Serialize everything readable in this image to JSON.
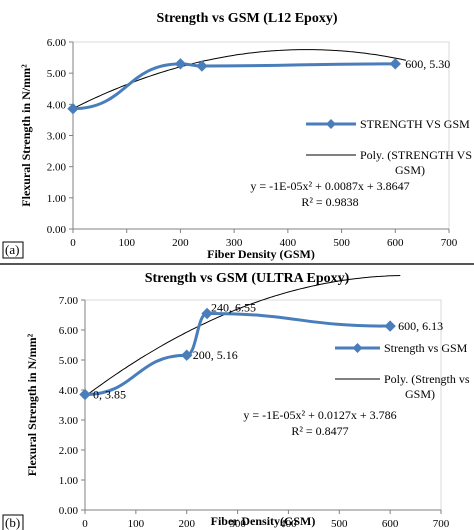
{
  "chart_data": [
    {
      "type": "line",
      "panel_label": "(a)",
      "title": "Strength vs GSM (L12 Epoxy)",
      "xlabel": "Fiber Density (GSM)",
      "ylabel": "Flexural Strength in N/mm²",
      "xlim": [
        0,
        700
      ],
      "ylim": [
        0,
        6
      ],
      "xticks": [
        "0",
        "100",
        "200",
        "300",
        "400",
        "500",
        "600",
        "700"
      ],
      "yticks": [
        "0.00",
        "1.00",
        "2.00",
        "3.00",
        "4.00",
        "5.00",
        "6.00"
      ],
      "grid": false,
      "legend_position": "right",
      "series": [
        {
          "name": "STRENGTH VS GSM",
          "x": [
            0,
            200,
            240,
            600
          ],
          "y": [
            3.86,
            5.3,
            5.23,
            5.3
          ],
          "point_labels": [
            "",
            "",
            "",
            "600, 5.30"
          ]
        }
      ],
      "trendline": {
        "name": "Poly. (STRENGTH VS GSM)",
        "name_lines": [
          "Poly. (STRENGTH VS",
          "GSM)"
        ],
        "coefficients": [
          -1e-05,
          0.0087,
          3.8647
        ],
        "equation": "y = -1E-05x² + 0.0087x + 3.8647",
        "r2": "R² = 0.9838"
      },
      "colors": {
        "series": "#4a7ebb",
        "trend": "#000000"
      }
    },
    {
      "type": "line",
      "panel_label": "(b)",
      "title": "Strength vs GSM (ULTRA Epoxy)",
      "xlabel": "Fiber Density(GSM)",
      "ylabel": "Flexural Strength in N/mm²",
      "xlim": [
        0,
        700
      ],
      "ylim": [
        0,
        7
      ],
      "xticks": [
        "0",
        "100",
        "200",
        "300",
        "400",
        "500",
        "600",
        "700"
      ],
      "yticks": [
        "0.00",
        "1.00",
        "2.00",
        "3.00",
        "4.00",
        "5.00",
        "6.00",
        "7.00"
      ],
      "grid": false,
      "legend_position": "right",
      "series": [
        {
          "name": "Strength vs GSM",
          "x": [
            0,
            200,
            240,
            600
          ],
          "y": [
            3.85,
            5.16,
            6.55,
            6.13
          ],
          "point_labels": [
            "0, 3.85",
            "200, 5.16",
            "240, 6.55",
            "600, 6.13"
          ]
        }
      ],
      "trendline": {
        "name": "Poly. (Strength vs GSM)",
        "name_lines": [
          "Poly. (Strength vs",
          "GSM)"
        ],
        "coefficients": [
          -1e-05,
          0.0127,
          3.786
        ],
        "equation": "y = -1E-05x² + 0.0127x + 3.786",
        "r2": "R² = 0.8477"
      },
      "colors": {
        "series": "#4a7ebb",
        "trend": "#000000"
      }
    }
  ]
}
